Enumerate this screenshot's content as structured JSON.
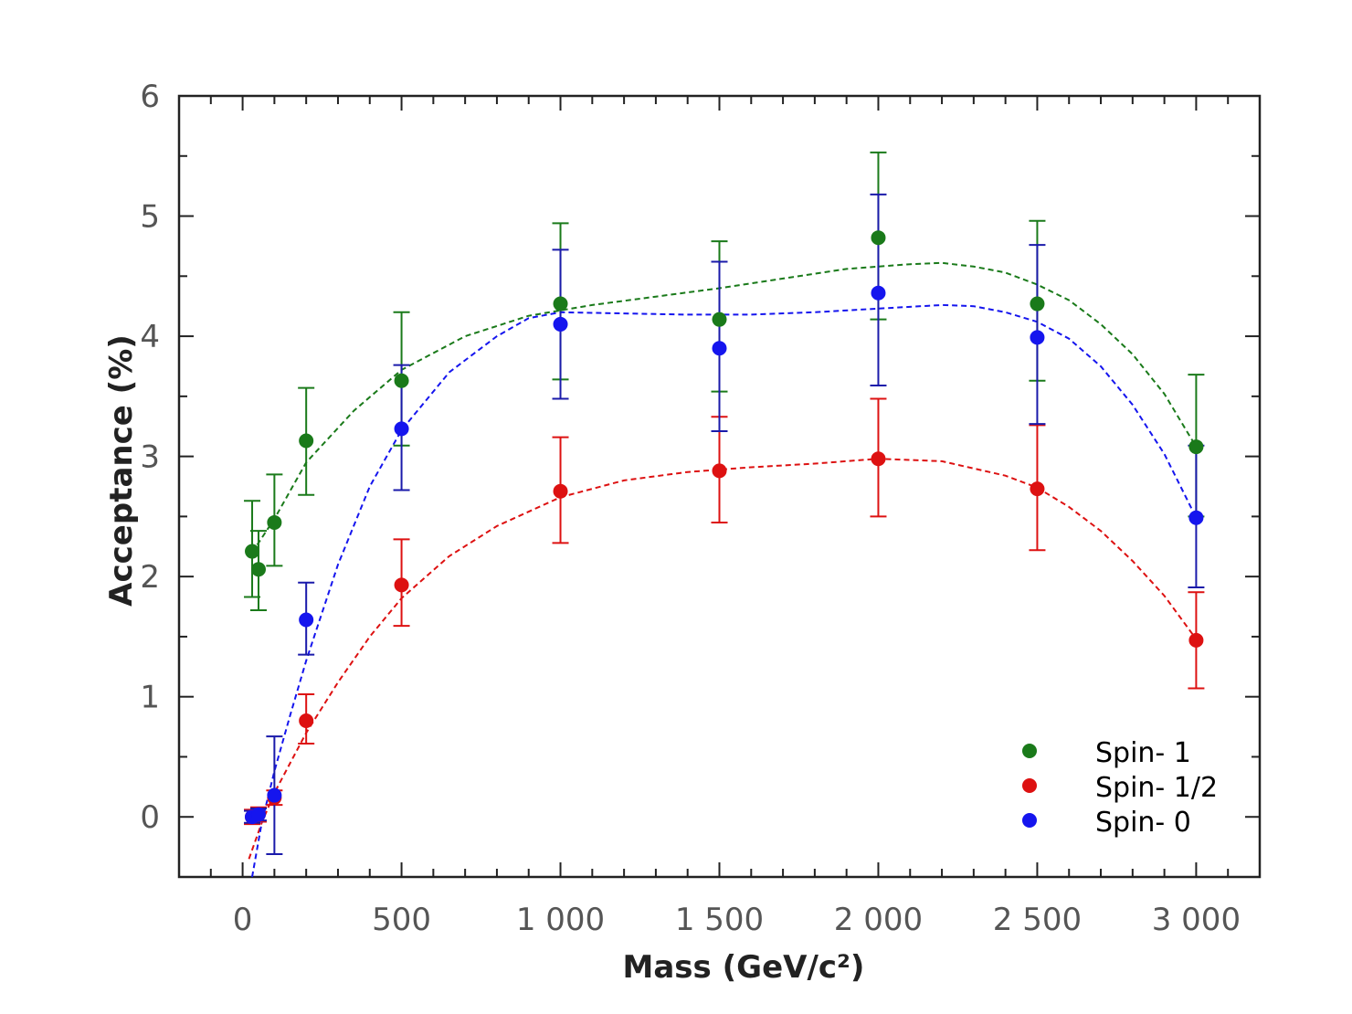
{
  "chart_data": {
    "type": "scatter",
    "title": "",
    "xlabel": "Mass (GeV/c²)",
    "ylabel": "Acceptance (%)",
    "xlim": [
      -200,
      3200
    ],
    "ylim": [
      -0.5,
      6
    ],
    "x_ticks": [
      {
        "value": 0,
        "label": "0"
      },
      {
        "value": 500,
        "label": "500"
      },
      {
        "value": 1000,
        "label": "1 000"
      },
      {
        "value": 1500,
        "label": "1 500"
      },
      {
        "value": 2000,
        "label": "2 000"
      },
      {
        "value": 2500,
        "label": "2 500"
      },
      {
        "value": 3000,
        "label": "3 000"
      }
    ],
    "y_ticks": [
      {
        "value": 0,
        "label": "0"
      },
      {
        "value": 1,
        "label": "1"
      },
      {
        "value": 2,
        "label": "2"
      },
      {
        "value": 3,
        "label": "3"
      },
      {
        "value": 4,
        "label": "4"
      },
      {
        "value": 5,
        "label": "5"
      },
      {
        "value": 6,
        "label": "6"
      }
    ],
    "legend_position": "bottom-right",
    "series": [
      {
        "name": "Spin- 1",
        "color": "#1a7a1a",
        "points": [
          {
            "x": 30,
            "y": 2.21,
            "lo": 1.83,
            "hi": 2.63
          },
          {
            "x": 50,
            "y": 2.06,
            "lo": 1.72,
            "hi": 2.38
          },
          {
            "x": 100,
            "y": 2.45,
            "lo": 2.09,
            "hi": 2.85
          },
          {
            "x": 200,
            "y": 3.13,
            "lo": 2.68,
            "hi": 3.57
          },
          {
            "x": 500,
            "y": 3.63,
            "lo": 3.09,
            "hi": 4.2
          },
          {
            "x": 1000,
            "y": 4.27,
            "lo": 3.64,
            "hi": 4.94
          },
          {
            "x": 1500,
            "y": 4.14,
            "lo": 3.54,
            "hi": 4.79
          },
          {
            "x": 2000,
            "y": 4.82,
            "lo": 4.14,
            "hi": 5.53
          },
          {
            "x": 2500,
            "y": 4.27,
            "lo": 3.63,
            "hi": 4.96
          },
          {
            "x": 3000,
            "y": 3.08,
            "lo": 2.5,
            "hi": 3.68
          }
        ],
        "fit": [
          [
            30,
            2.2
          ],
          [
            100,
            2.48
          ],
          [
            200,
            2.95
          ],
          [
            350,
            3.38
          ],
          [
            500,
            3.72
          ],
          [
            700,
            4.0
          ],
          [
            900,
            4.17
          ],
          [
            1100,
            4.26
          ],
          [
            1300,
            4.33
          ],
          [
            1500,
            4.4
          ],
          [
            1700,
            4.48
          ],
          [
            1900,
            4.56
          ],
          [
            2100,
            4.6
          ],
          [
            2200,
            4.61
          ],
          [
            2300,
            4.58
          ],
          [
            2400,
            4.53
          ],
          [
            2500,
            4.43
          ],
          [
            2600,
            4.3
          ],
          [
            2700,
            4.1
          ],
          [
            2800,
            3.85
          ],
          [
            2900,
            3.52
          ],
          [
            3000,
            3.08
          ]
        ]
      },
      {
        "name": "Spin- 1/2",
        "color": "#dd1111",
        "points": [
          {
            "x": 30,
            "y": 0.0,
            "lo": -0.06,
            "hi": 0.06
          },
          {
            "x": 50,
            "y": 0.02,
            "lo": -0.04,
            "hi": 0.08
          },
          {
            "x": 100,
            "y": 0.16,
            "lo": 0.1,
            "hi": 0.22
          },
          {
            "x": 200,
            "y": 0.8,
            "lo": 0.61,
            "hi": 1.02
          },
          {
            "x": 500,
            "y": 1.93,
            "lo": 1.59,
            "hi": 2.31
          },
          {
            "x": 1000,
            "y": 2.71,
            "lo": 2.28,
            "hi": 3.16
          },
          {
            "x": 1500,
            "y": 2.88,
            "lo": 2.45,
            "hi": 3.33
          },
          {
            "x": 2000,
            "y": 2.98,
            "lo": 2.5,
            "hi": 3.48
          },
          {
            "x": 2500,
            "y": 2.73,
            "lo": 2.22,
            "hi": 3.26
          },
          {
            "x": 3000,
            "y": 1.47,
            "lo": 1.07,
            "hi": 1.87
          }
        ],
        "fit": [
          [
            20,
            -0.35
          ],
          [
            60,
            -0.05
          ],
          [
            100,
            0.2
          ],
          [
            150,
            0.45
          ],
          [
            200,
            0.7
          ],
          [
            300,
            1.12
          ],
          [
            400,
            1.5
          ],
          [
            500,
            1.82
          ],
          [
            650,
            2.17
          ],
          [
            800,
            2.42
          ],
          [
            1000,
            2.66
          ],
          [
            1200,
            2.8
          ],
          [
            1400,
            2.87
          ],
          [
            1600,
            2.91
          ],
          [
            1800,
            2.94
          ],
          [
            2000,
            2.98
          ],
          [
            2200,
            2.96
          ],
          [
            2400,
            2.84
          ],
          [
            2500,
            2.74
          ],
          [
            2600,
            2.58
          ],
          [
            2700,
            2.38
          ],
          [
            2800,
            2.13
          ],
          [
            2900,
            1.84
          ],
          [
            3000,
            1.48
          ]
        ]
      },
      {
        "name": "Spin- 0",
        "color": "#1515ee",
        "error_color": "#1a1aaa",
        "points": [
          {
            "x": 30,
            "y": 0.0,
            "lo": -0.05,
            "hi": 0.05
          },
          {
            "x": 50,
            "y": 0.02,
            "lo": -0.03,
            "hi": 0.07
          },
          {
            "x": 100,
            "y": 0.18,
            "lo": -0.31,
            "hi": 0.67
          },
          {
            "x": 200,
            "y": 1.64,
            "lo": 1.35,
            "hi": 1.95
          },
          {
            "x": 500,
            "y": 3.23,
            "lo": 2.72,
            "hi": 3.76
          },
          {
            "x": 1000,
            "y": 4.1,
            "lo": 3.48,
            "hi": 4.72
          },
          {
            "x": 1500,
            "y": 3.9,
            "lo": 3.21,
            "hi": 4.62
          },
          {
            "x": 2000,
            "y": 4.36,
            "lo": 3.59,
            "hi": 5.18
          },
          {
            "x": 2500,
            "y": 3.99,
            "lo": 3.27,
            "hi": 4.76
          },
          {
            "x": 3000,
            "y": 2.49,
            "lo": 1.91,
            "hi": 3.09
          }
        ],
        "fit": [
          [
            30,
            -0.5
          ],
          [
            60,
            -0.05
          ],
          [
            100,
            0.38
          ],
          [
            150,
            0.85
          ],
          [
            200,
            1.3
          ],
          [
            300,
            2.1
          ],
          [
            400,
            2.75
          ],
          [
            500,
            3.22
          ],
          [
            650,
            3.7
          ],
          [
            800,
            4.0
          ],
          [
            900,
            4.15
          ],
          [
            1000,
            4.2
          ],
          [
            1200,
            4.19
          ],
          [
            1400,
            4.18
          ],
          [
            1600,
            4.18
          ],
          [
            1800,
            4.2
          ],
          [
            2000,
            4.23
          ],
          [
            2200,
            4.26
          ],
          [
            2300,
            4.25
          ],
          [
            2400,
            4.2
          ],
          [
            2500,
            4.12
          ],
          [
            2600,
            3.98
          ],
          [
            2700,
            3.75
          ],
          [
            2800,
            3.43
          ],
          [
            2900,
            3.02
          ],
          [
            3000,
            2.49
          ]
        ]
      }
    ]
  }
}
